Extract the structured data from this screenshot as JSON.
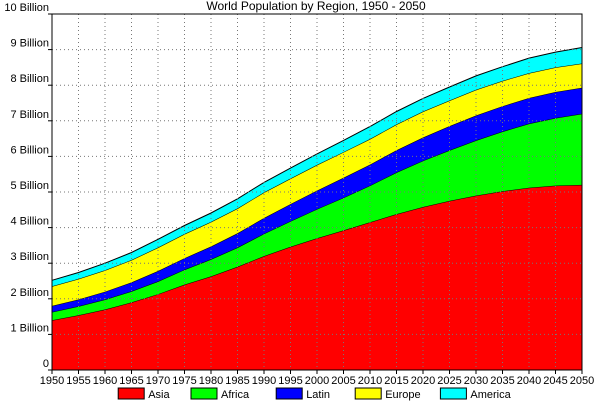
{
  "chart_data": {
    "type": "area",
    "stacked": true,
    "title": "World Population by Region, 1950 - 2050",
    "xlabel": "",
    "ylabel": "",
    "x": [
      1950,
      1955,
      1960,
      1965,
      1970,
      1975,
      1980,
      1985,
      1990,
      1995,
      2000,
      2005,
      2010,
      2015,
      2020,
      2025,
      2030,
      2035,
      2040,
      2045,
      2050
    ],
    "x_tick_labels": [
      "1950",
      "1955",
      "1960",
      "1965",
      "1970",
      "1975",
      "1980",
      "1985",
      "1990",
      "1995",
      "2000",
      "2005",
      "2010",
      "2015",
      "2020",
      "2025",
      "2030",
      "2035",
      "2040",
      "2045",
      "2050"
    ],
    "y_ticks": [
      0,
      1,
      2,
      3,
      4,
      5,
      6,
      7,
      8,
      9,
      10
    ],
    "y_tick_labels": [
      "0",
      "1 Billion",
      "2 Billion",
      "3 Billion",
      "4 Billion",
      "5 Billion",
      "6 Billion",
      "7 Billion",
      "8 Billion",
      "9 Billion",
      "10 Billion"
    ],
    "xlim": [
      1950,
      2050
    ],
    "ylim": [
      0,
      10
    ],
    "grid": true,
    "legend_position": "bottom",
    "series": [
      {
        "name": "Asia",
        "color": "#ff0000",
        "values": [
          1.4,
          1.54,
          1.7,
          1.9,
          2.13,
          2.4,
          2.63,
          2.9,
          3.2,
          3.46,
          3.7,
          3.92,
          4.15,
          4.38,
          4.58,
          4.75,
          4.9,
          5.02,
          5.12,
          5.18,
          5.2
        ]
      },
      {
        "name": "Africa",
        "color": "#00ff00",
        "values": [
          0.23,
          0.25,
          0.28,
          0.31,
          0.36,
          0.42,
          0.48,
          0.54,
          0.63,
          0.72,
          0.82,
          0.92,
          1.03,
          1.17,
          1.3,
          1.42,
          1.55,
          1.68,
          1.8,
          1.9,
          2.0
        ]
      },
      {
        "name": "Latin",
        "color": "#0000ff",
        "values": [
          0.17,
          0.19,
          0.22,
          0.25,
          0.29,
          0.32,
          0.36,
          0.4,
          0.44,
          0.48,
          0.52,
          0.56,
          0.59,
          0.62,
          0.65,
          0.68,
          0.7,
          0.71,
          0.72,
          0.73,
          0.73
        ]
      },
      {
        "name": "Europe",
        "color": "#ffff00",
        "values": [
          0.55,
          0.58,
          0.6,
          0.63,
          0.66,
          0.68,
          0.69,
          0.7,
          0.72,
          0.72,
          0.72,
          0.72,
          0.72,
          0.73,
          0.73,
          0.72,
          0.72,
          0.71,
          0.7,
          0.69,
          0.68
        ]
      },
      {
        "name": "America",
        "color": "#00ffff",
        "values": [
          0.17,
          0.18,
          0.2,
          0.21,
          0.23,
          0.24,
          0.25,
          0.27,
          0.28,
          0.29,
          0.31,
          0.33,
          0.35,
          0.36,
          0.37,
          0.38,
          0.39,
          0.4,
          0.42,
          0.43,
          0.45
        ]
      }
    ]
  }
}
